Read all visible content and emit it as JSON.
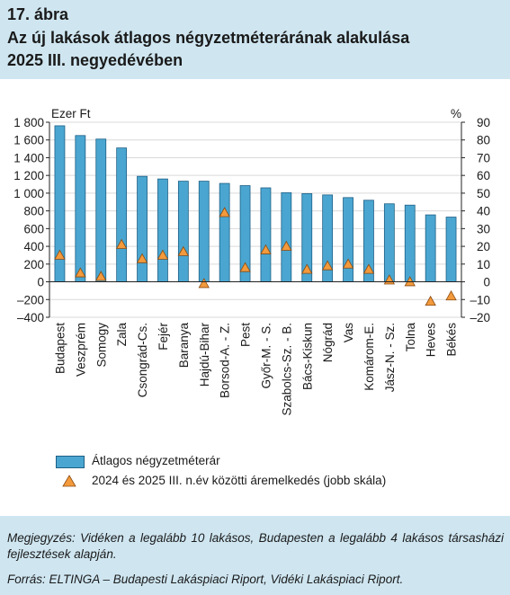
{
  "figure": {
    "number": "17. ábra",
    "title_line1": "Az új lakások átlagos négyzetméterárának alakulása",
    "title_line2": "2025 III. negyedévében"
  },
  "chart_data": {
    "type": "bar",
    "left_axis_label": "Ezer Ft",
    "right_axis_label": "%",
    "ylim_left": [
      -400,
      1800
    ],
    "ylim_right": [
      -20,
      90
    ],
    "left_ticks": [
      "1 800",
      "1 600",
      "1 400",
      "1 200",
      "1 000",
      "800",
      "600",
      "400",
      "200",
      "0",
      "–200",
      "–400"
    ],
    "right_ticks": [
      "90",
      "80",
      "70",
      "60",
      "50",
      "40",
      "30",
      "20",
      "10",
      "0",
      "–10",
      "–20"
    ],
    "categories": [
      "Budapest",
      "Veszprém",
      "Somogy",
      "Zala",
      "Csongrád-Cs.",
      "Fejér",
      "Baranya",
      "Hajdú-Bihar",
      "Borsod-A. - Z.",
      "Pest",
      "Győr-M. - S.",
      "Szabolcs-Sz. - B.",
      "Bács-Kiskun",
      "Nógrád",
      "Vas",
      "Komárom-E.",
      "Jász-N. - Sz.",
      "Tolna",
      "Heves",
      "Békés"
    ],
    "series": [
      {
        "name": "Átlagos négyzetméterár",
        "axis": "left",
        "color": "#4aa6d0",
        "values": [
          1760,
          1650,
          1610,
          1510,
          1190,
          1160,
          1135,
          1135,
          1110,
          1085,
          1060,
          1005,
          995,
          980,
          950,
          920,
          880,
          865,
          755,
          730
        ]
      },
      {
        "name": "2024 és 2025 III. n.év közötti áremelkedés (jobb skála)",
        "axis": "right",
        "marker": "triangle",
        "color": "#f39a3c",
        "values": [
          15,
          5,
          3,
          21,
          13,
          15,
          17,
          -1,
          39,
          8,
          18,
          20,
          7,
          9,
          10,
          7,
          1,
          0,
          -11,
          -8
        ]
      }
    ]
  },
  "notes": {
    "note": "Megjegyzés: Vidéken a legalább 10 lakásos, Budapesten a legalább 4 lakásos társasházi fejlesztések alapján.",
    "source": "Forrás: ELTINGA – Budapesti Lakáspiaci Riport, Vidéki Lakáspiaci Riport."
  }
}
